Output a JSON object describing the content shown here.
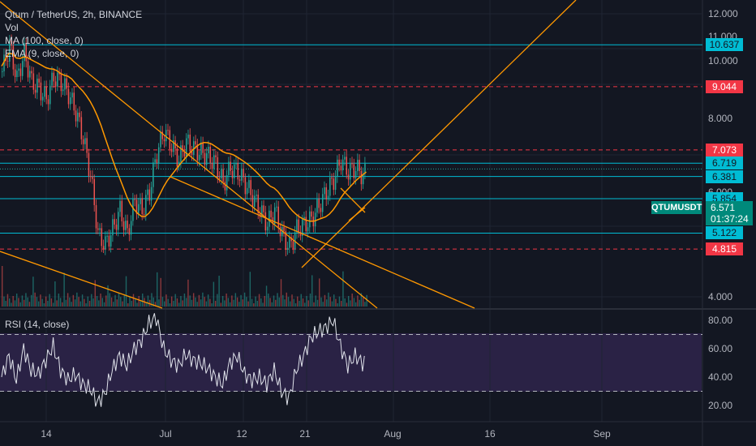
{
  "legend": {
    "symbol": "Qtum / TetherUS, 2h, BINANCE",
    "vol": "Vol",
    "ma": "MA (100, close, 0)",
    "ema": "EMA (9, close, 0)",
    "rsi": "RSI (14, close)"
  },
  "price_axis": {
    "ticks": [
      "12.000",
      "11.000",
      "10.000",
      "8.000",
      "6.000",
      "4.000"
    ]
  },
  "rsi_axis": {
    "ticks": [
      "80.00",
      "60.00",
      "40.00",
      "20.00"
    ]
  },
  "time_axis": {
    "ticks": [
      "14",
      "Jul",
      "12",
      "21",
      "Aug",
      "16",
      "Sep"
    ]
  },
  "level_badges": [
    {
      "label": "10.637",
      "kind": "cyan"
    },
    {
      "label": "9.044",
      "kind": "red"
    },
    {
      "label": "7.073",
      "kind": "red"
    },
    {
      "label": "6.719",
      "kind": "cyan"
    },
    {
      "label": "6.381",
      "kind": "cyan"
    },
    {
      "label": "5.854",
      "kind": "cyan"
    },
    {
      "label": "5.122",
      "kind": "cyan"
    },
    {
      "label": "4.815",
      "kind": "red"
    }
  ],
  "current": {
    "symbol_tag": "QTUMUSDT",
    "price": "6.571",
    "countdown": "01:37:24"
  },
  "colors": {
    "background": "#131722",
    "up": "#26a69a",
    "down": "#ef5350",
    "cyan": "#00bcd4",
    "red": "#f23645",
    "orange": "#ff9800",
    "rsi_line": "#e0e3eb",
    "rsi_band": "#2a2245"
  },
  "chart_data": {
    "type": "candlestick",
    "symbol": "Qtum / TetherUS",
    "interval": "2h",
    "exchange": "BINANCE",
    "price_scale": "log",
    "price_range": [
      3.7,
      13.0
    ],
    "horizontal_levels": [
      10.637,
      9.044,
      7.073,
      6.719,
      6.381,
      5.854,
      5.122,
      4.815
    ],
    "last_price": 6.571,
    "rsi_range": [
      10,
      90
    ],
    "rsi_bands": [
      70,
      30
    ],
    "price_path": [
      [
        0,
        9.6
      ],
      [
        4,
        10.6
      ],
      [
        8,
        9.3
      ],
      [
        12,
        10.3
      ],
      [
        16,
        9.2
      ],
      [
        20,
        9.0
      ],
      [
        24,
        8.6
      ],
      [
        28,
        9.4
      ],
      [
        32,
        9.2
      ],
      [
        36,
        8.8
      ],
      [
        40,
        8.2
      ],
      [
        44,
        7.4
      ],
      [
        48,
        6.4
      ],
      [
        52,
        5.1
      ],
      [
        56,
        4.9
      ],
      [
        60,
        5.2
      ],
      [
        64,
        5.6
      ],
      [
        68,
        5.1
      ],
      [
        72,
        5.8
      ],
      [
        76,
        5.6
      ],
      [
        80,
        6.0
      ],
      [
        84,
        7.0
      ],
      [
        88,
        7.6
      ],
      [
        92,
        7.2
      ],
      [
        96,
        6.8
      ],
      [
        100,
        7.3
      ],
      [
        104,
        7.1
      ],
      [
        108,
        7.0
      ],
      [
        112,
        6.9
      ],
      [
        116,
        6.7
      ],
      [
        120,
        6.2
      ],
      [
        124,
        6.6
      ],
      [
        128,
        6.5
      ],
      [
        132,
        6.2
      ],
      [
        136,
        5.9
      ],
      [
        140,
        5.6
      ],
      [
        144,
        5.3
      ],
      [
        148,
        5.6
      ],
      [
        152,
        5.1
      ],
      [
        156,
        4.85
      ],
      [
        160,
        5.2
      ],
      [
        164,
        5.3
      ],
      [
        168,
        5.4
      ],
      [
        172,
        5.7
      ],
      [
        176,
        6.0
      ],
      [
        180,
        6.3
      ],
      [
        184,
        6.8
      ],
      [
        188,
        6.5
      ],
      [
        192,
        6.6
      ],
      [
        196,
        6.4
      ],
      [
        198,
        6.57
      ]
    ],
    "rsi_path": [
      [
        0,
        40
      ],
      [
        4,
        55
      ],
      [
        8,
        38
      ],
      [
        12,
        60
      ],
      [
        16,
        45
      ],
      [
        20,
        42
      ],
      [
        24,
        52
      ],
      [
        28,
        62
      ],
      [
        32,
        45
      ],
      [
        36,
        38
      ],
      [
        40,
        42
      ],
      [
        44,
        35
      ],
      [
        48,
        32
      ],
      [
        52,
        22
      ],
      [
        56,
        28
      ],
      [
        60,
        45
      ],
      [
        64,
        55
      ],
      [
        68,
        48
      ],
      [
        72,
        60
      ],
      [
        76,
        66
      ],
      [
        80,
        78
      ],
      [
        84,
        82
      ],
      [
        88,
        60
      ],
      [
        92,
        52
      ],
      [
        96,
        48
      ],
      [
        100,
        56
      ],
      [
        104,
        52
      ],
      [
        108,
        50
      ],
      [
        112,
        46
      ],
      [
        116,
        40
      ],
      [
        120,
        35
      ],
      [
        124,
        50
      ],
      [
        128,
        55
      ],
      [
        132,
        42
      ],
      [
        136,
        38
      ],
      [
        140,
        40
      ],
      [
        144,
        35
      ],
      [
        148,
        45
      ],
      [
        152,
        30
      ],
      [
        156,
        25
      ],
      [
        160,
        45
      ],
      [
        164,
        55
      ],
      [
        168,
        68
      ],
      [
        172,
        72
      ],
      [
        176,
        75
      ],
      [
        180,
        80
      ],
      [
        184,
        62
      ],
      [
        188,
        48
      ],
      [
        192,
        55
      ],
      [
        196,
        50
      ],
      [
        198,
        52
      ]
    ]
  }
}
